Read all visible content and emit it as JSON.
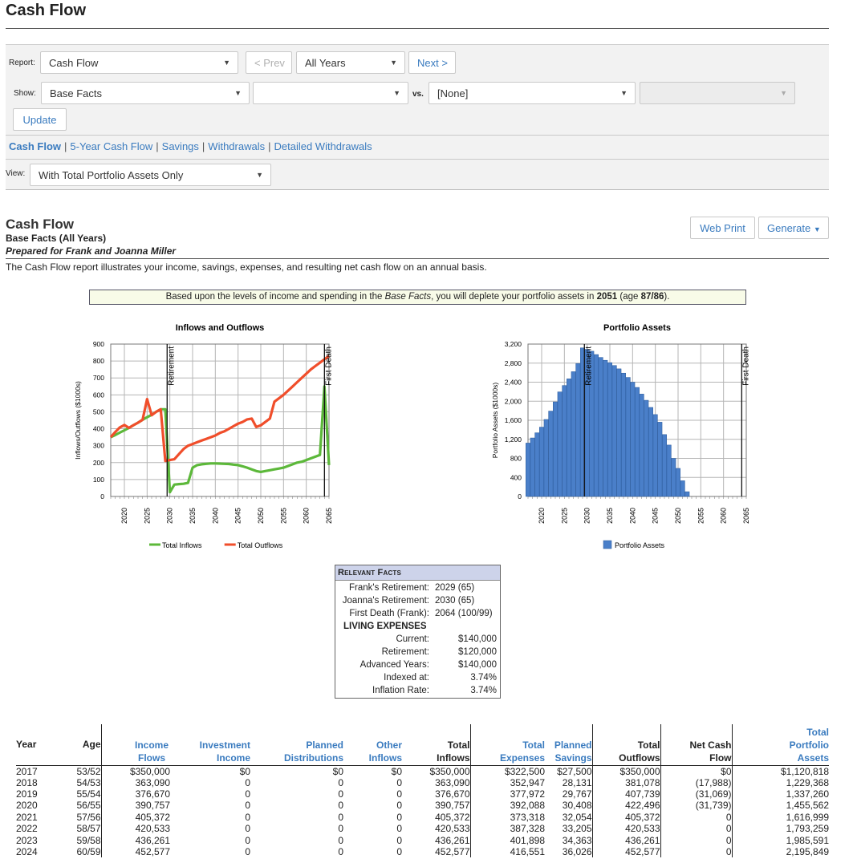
{
  "page": {
    "title": "Cash Flow"
  },
  "toolbar": {
    "report_label": "Report:",
    "report_value": "Cash Flow",
    "prev_label": "< Prev",
    "years_value": "All Years",
    "next_label": "Next >",
    "show_label": "Show:",
    "show_value": "Base Facts",
    "show_second_value": "",
    "vs_label": "vs.",
    "vs_value": "[None]",
    "vs_second_value": "",
    "update_label": "Update",
    "view_label": "View:",
    "view_value": "With Total Portfolio Assets Only"
  },
  "report_links": [
    {
      "label": "Cash Flow",
      "active": true
    },
    {
      "label": "5-Year Cash Flow",
      "active": false
    },
    {
      "label": "Savings",
      "active": false
    },
    {
      "label": "Withdrawals",
      "active": false
    },
    {
      "label": "Detailed Withdrawals",
      "active": false
    }
  ],
  "report": {
    "title": "Cash Flow",
    "subtitle": "Base Facts (All Years)",
    "prepared_for": "Prepared for Frank and Joanna Miller",
    "description": "The Cash Flow report illustrates your income, savings, expenses, and resulting net cash flow on an annual basis.",
    "web_print_label": "Web Print",
    "generate_label": "Generate",
    "notice": {
      "pre": "Based upon the levels of income and spending in the ",
      "italic": "Base Facts",
      "mid": ", you will deplete your portfolio assets in ",
      "year": "2051",
      "age_pre": " (age ",
      "age": "87/86",
      "post": ")."
    }
  },
  "chart_data": [
    {
      "type": "line",
      "title": "Inflows and Outflows",
      "ylabel": "Inflows/Outflows ($1000s)",
      "xlabel": "",
      "ylim": [
        0,
        900
      ],
      "yticks": [
        "0",
        "100",
        "200",
        "300",
        "400",
        "500",
        "600",
        "700",
        "800",
        "900"
      ],
      "xlim": [
        2017,
        2065
      ],
      "xticks": [
        "2020",
        "2025",
        "2030",
        "2035",
        "2040",
        "2045",
        "2050",
        "2055",
        "2060",
        "2065"
      ],
      "grid": true,
      "legend": "bottom",
      "markers": [
        {
          "label": "Retirement",
          "x": 2029.4
        },
        {
          "label": "First Death",
          "x": 2064
        }
      ],
      "series": [
        {
          "name": "Total Inflows",
          "color": "#5cb83a",
          "x": [
            2017,
            2018,
            2019,
            2020,
            2021,
            2022,
            2023,
            2024,
            2025,
            2026,
            2027,
            2028,
            2029,
            2030,
            2031,
            2032,
            2033,
            2034,
            2035,
            2036,
            2037,
            2038,
            2039,
            2040,
            2041,
            2042,
            2043,
            2044,
            2045,
            2046,
            2047,
            2048,
            2049,
            2050,
            2051,
            2052,
            2053,
            2054,
            2055,
            2056,
            2057,
            2058,
            2059,
            2060,
            2061,
            2062,
            2063,
            2064,
            2065
          ],
          "values": [
            350,
            363,
            377,
            391,
            405,
            421,
            436,
            453,
            468,
            482,
            500,
            515,
            515,
            25,
            70,
            73,
            75,
            80,
            170,
            185,
            190,
            193,
            195,
            195,
            194,
            193,
            192,
            188,
            185,
            178,
            170,
            160,
            150,
            145,
            150,
            155,
            160,
            165,
            170,
            180,
            190,
            200,
            205,
            215,
            225,
            235,
            245,
            650,
            185
          ]
        },
        {
          "name": "Total Outflows",
          "color": "#f04e2b",
          "x": [
            2017,
            2018,
            2019,
            2020,
            2021,
            2022,
            2023,
            2024,
            2025,
            2026,
            2027,
            2028,
            2029,
            2030,
            2031,
            2032,
            2033,
            2034,
            2035,
            2036,
            2037,
            2038,
            2039,
            2040,
            2041,
            2042,
            2043,
            2044,
            2045,
            2046,
            2047,
            2048,
            2049,
            2050,
            2051,
            2052,
            2053,
            2054,
            2055,
            2056,
            2057,
            2058,
            2059,
            2060,
            2061,
            2062,
            2063,
            2064,
            2065
          ],
          "values": [
            350,
            381,
            408,
            422,
            405,
            421,
            436,
            453,
            575,
            480,
            500,
            515,
            210,
            215,
            220,
            250,
            280,
            300,
            310,
            320,
            330,
            340,
            350,
            360,
            375,
            385,
            400,
            415,
            430,
            440,
            455,
            460,
            410,
            420,
            440,
            460,
            560,
            580,
            600,
            625,
            650,
            675,
            700,
            725,
            750,
            770,
            790,
            810,
            830
          ]
        }
      ]
    },
    {
      "type": "bar",
      "title": "Portfolio Assets",
      "ylabel": "Portfolio Assets ($1000s)",
      "xlabel": "",
      "ylim": [
        0,
        3200
      ],
      "yticks": [
        "0",
        "400",
        "800",
        "1,200",
        "1,600",
        "2,000",
        "2,400",
        "2,800",
        "3,200"
      ],
      "xlim": [
        2017,
        2065
      ],
      "xticks": [
        "2020",
        "2025",
        "2030",
        "2035",
        "2040",
        "2045",
        "2050",
        "2055",
        "2060",
        "2065"
      ],
      "grid": true,
      "legend": "bottom",
      "markers": [
        {
          "label": "Retirement",
          "x": 2029.4
        },
        {
          "label": "First Death",
          "x": 2064
        }
      ],
      "series": [
        {
          "name": "Portfolio Assets",
          "color": "#4a7fc9",
          "x": [
            2017,
            2018,
            2019,
            2020,
            2021,
            2022,
            2023,
            2024,
            2025,
            2026,
            2027,
            2028,
            2029,
            2030,
            2031,
            2032,
            2033,
            2034,
            2035,
            2036,
            2037,
            2038,
            2039,
            2040,
            2041,
            2042,
            2043,
            2044,
            2045,
            2046,
            2047,
            2048,
            2049,
            2050,
            2051,
            2052,
            2053,
            2054,
            2055,
            2056,
            2057,
            2058,
            2059,
            2060,
            2061,
            2062,
            2063,
            2064,
            2065
          ],
          "values": [
            1121,
            1229,
            1337,
            1456,
            1617,
            1793,
            1986,
            2196,
            2330,
            2470,
            2620,
            2790,
            3120,
            3090,
            3050,
            2980,
            2920,
            2860,
            2810,
            2750,
            2680,
            2590,
            2500,
            2400,
            2290,
            2150,
            2020,
            1870,
            1720,
            1560,
            1300,
            1080,
            800,
            590,
            330,
            100,
            0,
            0,
            0,
            0,
            0,
            0,
            0,
            0,
            0,
            0,
            0,
            0,
            0
          ]
        }
      ]
    }
  ],
  "facts": {
    "title": "Relevant Facts",
    "rows": [
      {
        "k": "Frank's Retirement:",
        "v": "2029 (65)"
      },
      {
        "k": "Joanna's Retirement:",
        "v": "2030 (65)"
      },
      {
        "k": "First Death (Frank):",
        "v": "2064 (100/99)"
      }
    ],
    "section": "LIVING EXPENSES",
    "rows2": [
      {
        "k": "Current:",
        "v": "$140,000"
      },
      {
        "k": "Retirement:",
        "v": "$120,000"
      },
      {
        "k": "Advanced Years:",
        "v": "$140,000"
      },
      {
        "k": "Indexed at:",
        "v": "3.74%"
      },
      {
        "k": "Inflation Rate:",
        "v": "3.74%"
      }
    ]
  },
  "table": {
    "headers": [
      "Year",
      "Age",
      "Income Flows",
      "Investment Income",
      "Planned Distributions",
      "Other Inflows",
      "Total Inflows",
      "Total Expenses",
      "Planned Savings",
      "Total Outflows",
      "Net Cash Flow",
      "Total Portfolio Assets"
    ],
    "rows": [
      [
        "2017",
        "53/52",
        "$350,000",
        "$0",
        "$0",
        "$0",
        "$350,000",
        "$322,500",
        "$27,500",
        "$350,000",
        "$0",
        "$1,120,818"
      ],
      [
        "2018",
        "54/53",
        "363,090",
        "0",
        "0",
        "0",
        "363,090",
        "352,947",
        "28,131",
        "381,078",
        "(17,988)",
        "1,229,368"
      ],
      [
        "2019",
        "55/54",
        "376,670",
        "0",
        "0",
        "0",
        "376,670",
        "377,972",
        "29,767",
        "407,739",
        "(31,069)",
        "1,337,260"
      ],
      [
        "2020",
        "56/55",
        "390,757",
        "0",
        "0",
        "0",
        "390,757",
        "392,088",
        "30,408",
        "422,496",
        "(31,739)",
        "1,455,562"
      ],
      [
        "2021",
        "57/56",
        "405,372",
        "0",
        "0",
        "0",
        "405,372",
        "373,318",
        "32,054",
        "405,372",
        "0",
        "1,616,999"
      ],
      [
        "2022",
        "58/57",
        "420,533",
        "0",
        "0",
        "0",
        "420,533",
        "387,328",
        "33,205",
        "420,533",
        "0",
        "1,793,259"
      ],
      [
        "2023",
        "59/58",
        "436,261",
        "0",
        "0",
        "0",
        "436,261",
        "401,898",
        "34,363",
        "436,261",
        "0",
        "1,985,591"
      ],
      [
        "2024",
        "60/59",
        "452,577",
        "0",
        "0",
        "0",
        "452,577",
        "416,551",
        "36,026",
        "452,577",
        "0",
        "2,195,849"
      ]
    ]
  }
}
